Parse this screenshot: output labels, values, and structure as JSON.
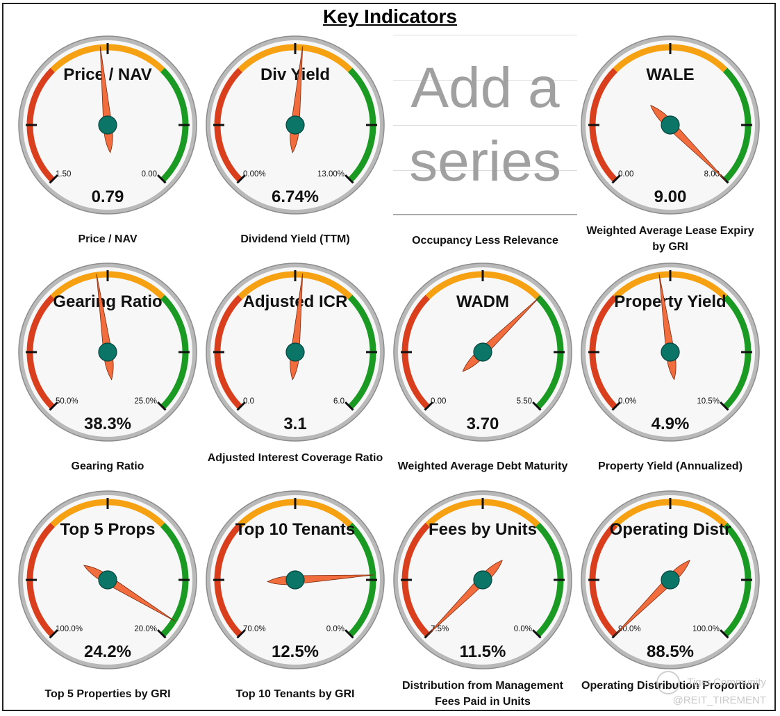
{
  "title": "Key Indicators",
  "placeholder": {
    "line1": "Add a",
    "line2": "series",
    "caption": "Occupancy Less Relevance"
  },
  "colors": {
    "red": "#d93f1c",
    "orange": "#f5a112",
    "green": "#1a9a22",
    "needle": "#f26d3d",
    "hub": "#0b7668"
  },
  "watermark": {
    "line1": "Tiger Community",
    "line2": "@REIT_TIREMENT"
  },
  "chart_data": [
    {
      "type": "gauge",
      "title": "Price / NAV",
      "caption": "Price / NAV",
      "value_label": "0.79",
      "min_label": "1.50",
      "max_label": "0.00",
      "needle_fraction": 0.48
    },
    {
      "type": "gauge",
      "title": "Div Yield",
      "caption": "Dividend Yield (TTM)",
      "value_label": "6.74%",
      "min_label": "0.00%",
      "max_label": "13.00%",
      "needle_fraction": 0.52
    },
    {
      "type": "gauge",
      "title": "WALE",
      "caption": "Weighted Average Lease Expiry by GRI",
      "value_label": "9.00",
      "min_label": "0.00",
      "max_label": "8.00",
      "needle_fraction": 1.0
    },
    {
      "type": "gauge",
      "title": "Gearing Ratio",
      "caption": "Gearing Ratio",
      "value_label": "38.3%",
      "min_label": "50.0%",
      "max_label": "25.0%",
      "needle_fraction": 0.47
    },
    {
      "type": "gauge",
      "title": "Adjusted ICR",
      "caption": "Adjusted Interest Coverage Ratio",
      "value_label": "3.1",
      "min_label": "0.0",
      "max_label": "6.0",
      "needle_fraction": 0.52
    },
    {
      "type": "gauge",
      "title": "WADM",
      "caption": "Weighted Average Debt Maturity",
      "value_label": "3.70",
      "min_label": "0.00",
      "max_label": "5.50",
      "needle_fraction": 0.67
    },
    {
      "type": "gauge",
      "title": "Property Yield",
      "caption": "Property Yield (Annualized)",
      "value_label": "4.9%",
      "min_label": "0.0%",
      "max_label": "10.5%",
      "needle_fraction": 0.47
    },
    {
      "type": "gauge",
      "title": "Top 5 Props",
      "caption": "Top 5 Properties by GRI",
      "value_label": "24.2%",
      "min_label": "100.0%",
      "max_label": "20.0%",
      "needle_fraction": 0.95
    },
    {
      "type": "gauge",
      "title": "Top 10 Tenants",
      "caption": "Top 10 Tenants by GRI",
      "value_label": "12.5%",
      "min_label": "70.0%",
      "max_label": "0.0%",
      "needle_fraction": 0.82
    },
    {
      "type": "gauge",
      "title": "Fees by Units",
      "caption": "Distribution from Management Fees Paid in Units",
      "value_label": "11.5%",
      "min_label": "7.5%",
      "max_label": "0.0%",
      "needle_fraction": 0.0
    },
    {
      "type": "gauge",
      "title": "Operating Distr",
      "caption": "Operating Distribution Proportion",
      "value_label": "88.5%",
      "min_label": "90.0%",
      "max_label": "100.0%",
      "needle_fraction": 0.0
    }
  ]
}
